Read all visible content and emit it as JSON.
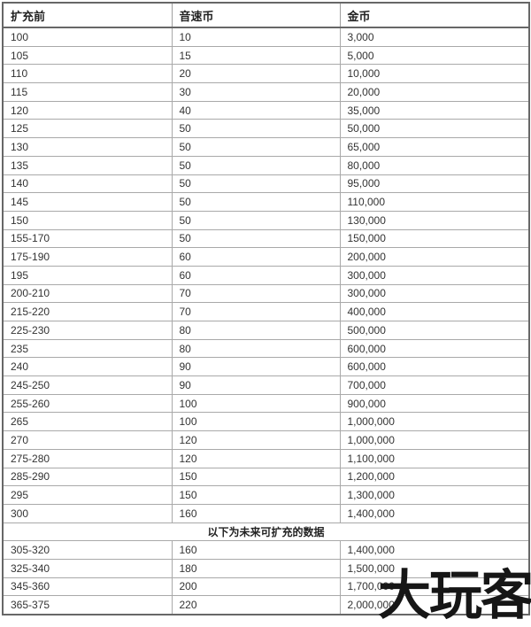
{
  "table": {
    "headers": [
      "扩充前",
      "音速币",
      "金币"
    ],
    "rows": [
      [
        "100",
        "10",
        "3,000"
      ],
      [
        "105",
        "15",
        "5,000"
      ],
      [
        "110",
        "20",
        "10,000"
      ],
      [
        "115",
        "30",
        "20,000"
      ],
      [
        "120",
        "40",
        "35,000"
      ],
      [
        "125",
        "50",
        "50,000"
      ],
      [
        "130",
        "50",
        "65,000"
      ],
      [
        "135",
        "50",
        "80,000"
      ],
      [
        "140",
        "50",
        "95,000"
      ],
      [
        "145",
        "50",
        "110,000"
      ],
      [
        "150",
        "50",
        "130,000"
      ],
      [
        "155-170",
        "50",
        "150,000"
      ],
      [
        "175-190",
        "60",
        "200,000"
      ],
      [
        "195",
        "60",
        "300,000"
      ],
      [
        "200-210",
        "70",
        "300,000"
      ],
      [
        "215-220",
        "70",
        "400,000"
      ],
      [
        "225-230",
        "80",
        "500,000"
      ],
      [
        "235",
        "80",
        "600,000"
      ],
      [
        "240",
        "90",
        "600,000"
      ],
      [
        "245-250",
        "90",
        "700,000"
      ],
      [
        "255-260",
        "100",
        "900,000"
      ],
      [
        "265",
        "100",
        "1,000,000"
      ],
      [
        "270",
        "120",
        "1,000,000"
      ],
      [
        "275-280",
        "120",
        "1,100,000"
      ],
      [
        "285-290",
        "150",
        "1,200,000"
      ],
      [
        "295",
        "150",
        "1,300,000"
      ],
      [
        "300",
        "160",
        "1,400,000"
      ]
    ],
    "section_label": "以下为未来可扩充的数据",
    "future_rows": [
      [
        "305-320",
        "160",
        "1,400,000"
      ],
      [
        "325-340",
        "180",
        "1,500,000"
      ],
      [
        "345-360",
        "200",
        "1,700,000"
      ],
      [
        "365-375",
        "220",
        "2,000,000"
      ]
    ]
  },
  "watermark": {
    "text": "大玩客"
  },
  "colors": {
    "background": "#ffffff",
    "border_outer": "#676767",
    "border_inner": "#a9a9a9",
    "text": "#333333",
    "watermark": "#161616"
  }
}
